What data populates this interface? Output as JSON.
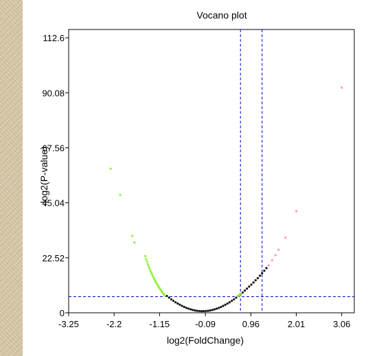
{
  "chart_data": {
    "type": "scatter",
    "title": "Vocano plot",
    "xlabel": "log2(FoldChange)",
    "ylabel": "-log2(P-value)",
    "xlim": [
      -3.25,
      3.35
    ],
    "ylim": [
      0,
      116
    ],
    "x_ticks": [
      -3.25,
      -2.2,
      -1.15,
      -0.09,
      0.96,
      2.01,
      3.06
    ],
    "x_tick_labels": [
      "-3.25",
      "-2.2",
      "-1.15",
      "-0.09",
      "0.96",
      "2.01",
      "3.06"
    ],
    "y_ticks": [
      0,
      22.52,
      45.04,
      67.56,
      90.08,
      112.6
    ],
    "y_tick_labels": [
      "0",
      "22.52",
      "45.04",
      "67.56",
      "90.08",
      "112.6"
    ],
    "reference_lines": {
      "vertical": [
        0.72,
        1.22
      ],
      "horizontal": [
        6.6
      ],
      "color": "#0000cc",
      "style": "dashed"
    },
    "grid": false,
    "series": [
      {
        "color": "#111111",
        "points": [
          [
            -0.98,
            6.9
          ],
          [
            -0.93,
            6.2
          ],
          [
            -0.88,
            5.5
          ],
          [
            -0.83,
            4.9
          ],
          [
            -0.78,
            4.3
          ],
          [
            -0.73,
            3.8
          ],
          [
            -0.68,
            3.3
          ],
          [
            -0.63,
            2.8
          ],
          [
            -0.58,
            2.4
          ],
          [
            -0.53,
            2.0
          ],
          [
            -0.48,
            1.7
          ],
          [
            -0.43,
            1.4
          ],
          [
            -0.38,
            1.15
          ],
          [
            -0.33,
            0.95
          ],
          [
            -0.28,
            0.8
          ],
          [
            -0.23,
            0.72
          ],
          [
            -0.18,
            0.68
          ],
          [
            -0.13,
            0.68
          ],
          [
            -0.08,
            0.72
          ],
          [
            -0.03,
            0.8
          ],
          [
            0.02,
            0.95
          ],
          [
            0.07,
            1.15
          ],
          [
            0.12,
            1.4
          ],
          [
            0.17,
            1.7
          ],
          [
            0.22,
            2.0
          ],
          [
            0.27,
            2.4
          ],
          [
            0.32,
            2.8
          ],
          [
            0.37,
            3.3
          ],
          [
            0.42,
            3.8
          ],
          [
            0.47,
            4.3
          ],
          [
            0.52,
            4.9
          ],
          [
            0.57,
            5.5
          ],
          [
            0.62,
            6.2
          ],
          [
            0.67,
            6.9
          ],
          [
            0.72,
            7.6
          ],
          [
            0.77,
            8.3
          ],
          [
            0.82,
            9.1
          ],
          [
            0.87,
            9.9
          ],
          [
            0.92,
            10.7
          ],
          [
            0.97,
            11.5
          ],
          [
            1.02,
            12.4
          ],
          [
            1.07,
            13.3
          ],
          [
            1.12,
            14.2
          ],
          [
            1.17,
            15.2
          ],
          [
            1.22,
            16.2
          ],
          [
            1.27,
            17.2
          ],
          [
            1.32,
            18.3
          ]
        ]
      },
      {
        "color": "#8ff23a",
        "points": [
          [
            -2.28,
            59.0
          ],
          [
            -2.06,
            48.3
          ],
          [
            -1.78,
            31.5
          ],
          [
            -1.73,
            28.8
          ],
          [
            -1.48,
            23.2
          ],
          [
            -1.46,
            22.0
          ],
          [
            -1.44,
            21.0
          ],
          [
            -1.42,
            19.9
          ],
          [
            -1.4,
            19.0
          ],
          [
            -1.38,
            18.1
          ],
          [
            -1.36,
            17.2
          ],
          [
            -1.34,
            16.4
          ],
          [
            -1.32,
            15.6
          ],
          [
            -1.3,
            14.8
          ],
          [
            -1.28,
            14.1
          ],
          [
            -1.26,
            13.4
          ],
          [
            -1.24,
            12.7
          ],
          [
            -1.22,
            12.1
          ],
          [
            -1.2,
            11.5
          ],
          [
            -1.18,
            10.9
          ],
          [
            -1.16,
            10.3
          ],
          [
            -1.14,
            9.8
          ],
          [
            -1.12,
            9.3
          ],
          [
            -1.1,
            8.8
          ],
          [
            -1.08,
            8.3
          ],
          [
            -1.06,
            7.8
          ],
          [
            -1.04,
            7.4
          ],
          [
            -1.02,
            7.0
          ],
          [
            0.66,
            6.8
          ],
          [
            0.7,
            7.3
          ],
          [
            0.74,
            7.8
          ]
        ]
      },
      {
        "color": "#ff9aa8",
        "points": [
          [
            1.37,
            19.4
          ],
          [
            1.45,
            21.5
          ],
          [
            1.53,
            23.6
          ],
          [
            1.6,
            25.8
          ],
          [
            1.76,
            30.8
          ],
          [
            2.01,
            41.6
          ],
          [
            3.06,
            92.2
          ]
        ]
      }
    ]
  }
}
